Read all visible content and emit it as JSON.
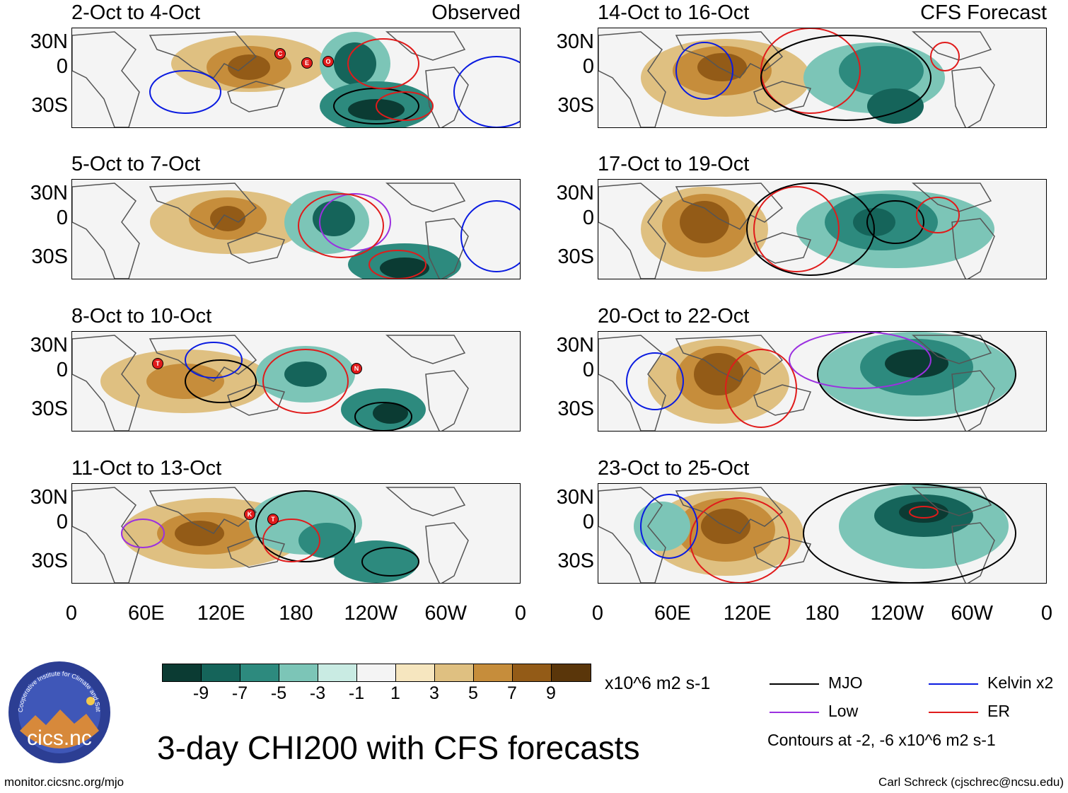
{
  "panels_left": [
    {
      "title": "2-Oct to 4-Oct",
      "tag": "Observed"
    },
    {
      "title": "5-Oct to 7-Oct",
      "tag": ""
    },
    {
      "title": "8-Oct to 10-Oct",
      "tag": ""
    },
    {
      "title": "11-Oct to 13-Oct",
      "tag": ""
    }
  ],
  "panels_right": [
    {
      "title": "14-Oct to 16-Oct",
      "tag": "CFS Forecast"
    },
    {
      "title": "17-Oct to 19-Oct",
      "tag": ""
    },
    {
      "title": "20-Oct to 22-Oct",
      "tag": ""
    },
    {
      "title": "23-Oct to 25-Oct",
      "tag": ""
    }
  ],
  "y_ticks": [
    "30N",
    "0",
    "30S"
  ],
  "x_ticks": [
    "0",
    "60E",
    "120E",
    "180",
    "120W",
    "60W",
    "0"
  ],
  "colorbar": {
    "colors": [
      "#0b3b33",
      "#15645a",
      "#2d8a7e",
      "#7cc5b7",
      "#c9ebe3",
      "#f4f4f4",
      "#f6e6bf",
      "#dfc081",
      "#c68d3b",
      "#935b17",
      "#5a360a"
    ],
    "ticks": [
      "-9",
      "-7",
      "-5",
      "-3",
      "-1",
      "1",
      "3",
      "5",
      "7",
      "9"
    ],
    "units": "x10^6 m2 s-1"
  },
  "legend": {
    "items": [
      {
        "label": "MJO",
        "color": "#000000"
      },
      {
        "label": "Kelvin x2",
        "color": "#0a1be0"
      },
      {
        "label": "Low",
        "color": "#9b30e0"
      },
      {
        "label": "ER",
        "color": "#e01b1b"
      }
    ],
    "contours_note": "Contours at -2, -6 x10^6 m2 s-1"
  },
  "main_title": "3-day CHI200 with CFS forecasts",
  "logo_text": "cics.nc",
  "logo_ring": "Cooperative Institute for Climate and Satellites",
  "url": "monitor.cicsnc.org/mjo",
  "credit": "Carl Schreck (cjschrec@ncsu.edu)",
  "storm_markers": [
    {
      "panel": 0,
      "letters": [
        "C",
        "E",
        "O"
      ]
    },
    {
      "panel": 2,
      "letters": [
        "T",
        "N"
      ]
    },
    {
      "panel": 3,
      "letters": [
        "K",
        "T"
      ]
    }
  ]
}
